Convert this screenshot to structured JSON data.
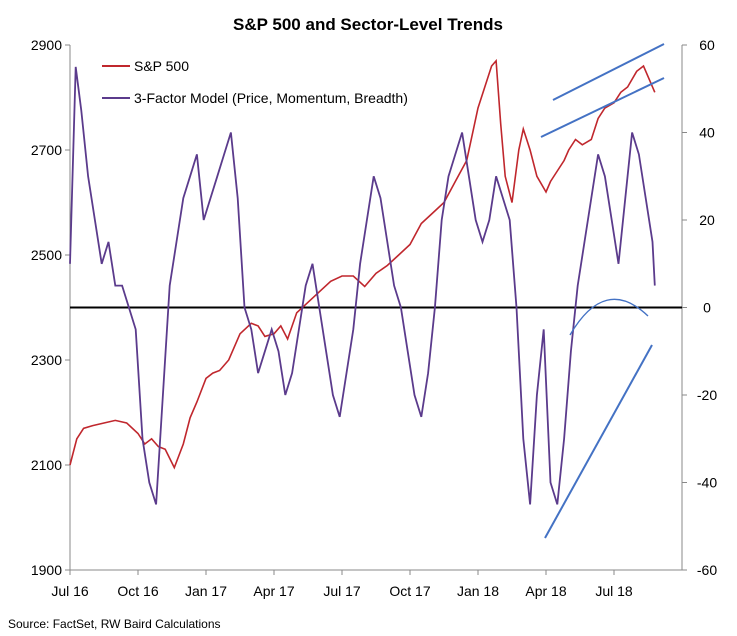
{
  "chart_data": {
    "type": "line",
    "title": "S&P 500 and Sector-Level Trends",
    "source": "Source: FactSet, RW Baird Calculations",
    "x_tick_labels": [
      "Jul 16",
      "Oct 16",
      "Jan 17",
      "Apr 17",
      "Jul 17",
      "Oct 17",
      "Jan 18",
      "Apr 18",
      "Jul 18"
    ],
    "x_tick_positions": [
      0,
      3,
      6,
      9,
      12,
      15,
      18,
      21,
      24
    ],
    "xlim": [
      0,
      27
    ],
    "left_axis": {
      "ylim": [
        1900,
        2900
      ],
      "tick_labels": [
        "1900",
        "2100",
        "2300",
        "2500",
        "2700",
        "2900"
      ]
    },
    "right_axis": {
      "ylim": [
        -60,
        60
      ],
      "tick_labels": [
        "-60",
        "-40",
        "-20",
        "0",
        "20",
        "40",
        "60"
      ]
    },
    "colors": {
      "sp500": "#c0272d",
      "model": "#5b3b8c",
      "trend": "#4472c4",
      "zero": "#000000"
    },
    "series": [
      {
        "name": "S&P 500",
        "axis": "left",
        "x": [
          0,
          0.3,
          0.6,
          1,
          1.5,
          2,
          2.5,
          3,
          3.3,
          3.6,
          3.9,
          4.2,
          4.6,
          5,
          5.3,
          5.6,
          6,
          6.3,
          6.6,
          7,
          7.5,
          8,
          8.3,
          8.6,
          9,
          9.3,
          9.6,
          10,
          10.5,
          11,
          11.5,
          12,
          12.5,
          13,
          13.5,
          14,
          14.5,
          15,
          15.5,
          16,
          16.5,
          17,
          17.5,
          18,
          18.3,
          18.6,
          18.8,
          19,
          19.2,
          19.5,
          19.8,
          20,
          20.3,
          20.6,
          21,
          21.2,
          21.5,
          21.8,
          22,
          22.3,
          22.6,
          23,
          23.3,
          23.6,
          24,
          24.3,
          24.6,
          25,
          25.3,
          25.6,
          25.8
        ],
        "values": [
          2100,
          2150,
          2170,
          2175,
          2180,
          2185,
          2180,
          2160,
          2140,
          2150,
          2135,
          2130,
          2095,
          2140,
          2190,
          2220,
          2265,
          2275,
          2280,
          2300,
          2350,
          2370,
          2365,
          2345,
          2350,
          2365,
          2340,
          2390,
          2410,
          2430,
          2450,
          2460,
          2460,
          2440,
          2465,
          2480,
          2500,
          2520,
          2560,
          2580,
          2600,
          2640,
          2680,
          2780,
          2820,
          2860,
          2870,
          2750,
          2650,
          2600,
          2700,
          2740,
          2700,
          2650,
          2620,
          2640,
          2660,
          2680,
          2700,
          2720,
          2710,
          2720,
          2760,
          2780,
          2790,
          2810,
          2820,
          2850,
          2860,
          2830,
          2810
        ]
      },
      {
        "name": "3-Factor Model (Price, Momentum, Breadth)",
        "axis": "right",
        "x": [
          0,
          0.25,
          0.5,
          0.8,
          1.1,
          1.4,
          1.7,
          2,
          2.3,
          2.6,
          2.9,
          3.2,
          3.5,
          3.8,
          4.1,
          4.4,
          4.7,
          5,
          5.3,
          5.6,
          5.9,
          6.2,
          6.5,
          6.8,
          7.1,
          7.4,
          7.7,
          8,
          8.3,
          8.6,
          8.9,
          9.2,
          9.5,
          9.8,
          10.1,
          10.4,
          10.7,
          11,
          11.3,
          11.6,
          11.9,
          12.2,
          12.5,
          12.8,
          13.1,
          13.4,
          13.7,
          14,
          14.3,
          14.6,
          14.9,
          15.2,
          15.5,
          15.8,
          16.1,
          16.4,
          16.7,
          17,
          17.3,
          17.6,
          17.9,
          18.2,
          18.5,
          18.8,
          19.1,
          19.4,
          19.7,
          20,
          20.3,
          20.6,
          20.9,
          21.2,
          21.5,
          21.8,
          22.1,
          22.4,
          22.7,
          23,
          23.3,
          23.6,
          23.9,
          24.2,
          24.5,
          24.8,
          25.1,
          25.4,
          25.7,
          25.8
        ],
        "values": [
          10,
          55,
          45,
          30,
          20,
          10,
          15,
          5,
          5,
          0,
          -5,
          -30,
          -40,
          -45,
          -20,
          5,
          15,
          25,
          30,
          35,
          20,
          25,
          30,
          35,
          40,
          25,
          0,
          -5,
          -15,
          -10,
          -5,
          -10,
          -20,
          -15,
          -5,
          5,
          10,
          0,
          -10,
          -20,
          -25,
          -15,
          -5,
          10,
          20,
          30,
          25,
          15,
          5,
          0,
          -10,
          -20,
          -25,
          -15,
          0,
          20,
          30,
          35,
          40,
          30,
          20,
          15,
          20,
          30,
          25,
          20,
          0,
          -30,
          -45,
          -20,
          -5,
          -40,
          -45,
          -30,
          -10,
          5,
          15,
          25,
          35,
          30,
          20,
          10,
          25,
          40,
          35,
          25,
          15,
          5
        ]
      }
    ],
    "legend": {
      "placement": "top-left"
    },
    "grid": false
  }
}
